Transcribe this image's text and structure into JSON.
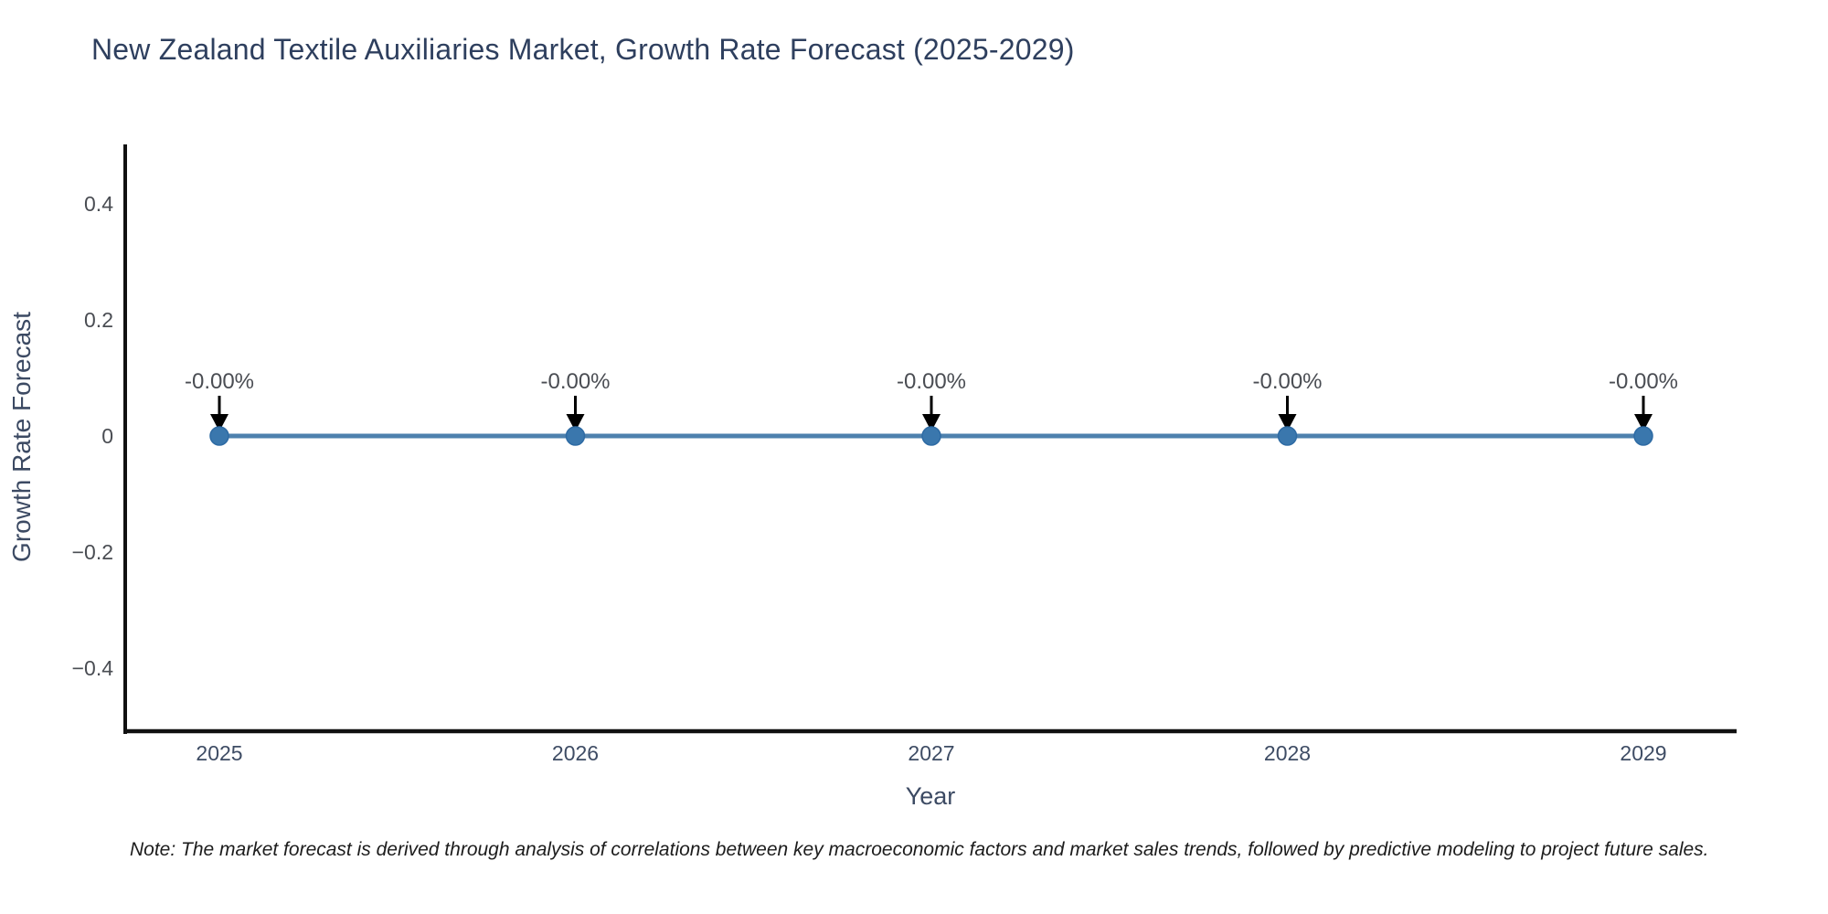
{
  "note": "Note: The market forecast is derived through analysis of correlations between key macroeconomic factors and market sales trends, followed by predictive modeling to project future sales.",
  "chart_data": {
    "type": "line",
    "title": "New Zealand Textile Auxiliaries Market, Growth Rate Forecast (2025-2029)",
    "xlabel": "Year",
    "ylabel": "Growth Rate Forecast",
    "categories": [
      "2025",
      "2026",
      "2027",
      "2028",
      "2029"
    ],
    "series": [
      {
        "name": "Growth Rate Forecast",
        "values": [
          0,
          0,
          0,
          0,
          0
        ]
      }
    ],
    "point_labels": [
      "-0.00%",
      "-0.00%",
      "-0.00%",
      "-0.00%",
      "-0.00%"
    ],
    "ytick_values": [
      0.4,
      0.2,
      0,
      -0.2,
      -0.4
    ],
    "ytick_labels": [
      "0.4",
      "0.2",
      "0",
      "−0.2",
      "−0.4"
    ],
    "ylim": [
      -0.5,
      0.5
    ],
    "grid": false,
    "legend_position": "none",
    "annotation_arrow": "down-arrow",
    "colors": {
      "line": "#4e81ae",
      "marker": "#3a77ad",
      "marker_edge": "#2e6ba4",
      "axis": "#111111",
      "arrow": "#000000",
      "title_text": "#2e3f5e",
      "axis_label_text": "#3c4a63",
      "tick_text": "#4a4d53",
      "note_text": "#1c1c1c"
    }
  }
}
